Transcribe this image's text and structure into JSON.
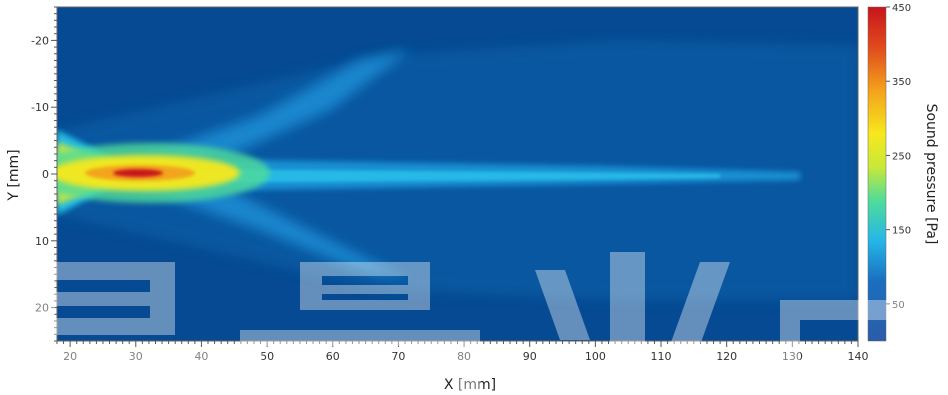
{
  "chart_data": {
    "type": "heatmap",
    "xlabel": "X [mm]",
    "ylabel": "Y [mm]",
    "colorbar_label": "Sound pressure [Pa]",
    "xlim": [
      18,
      140
    ],
    "ylim": [
      -25,
      25
    ],
    "y_inverted": true,
    "x_ticks": [
      20,
      30,
      40,
      50,
      60,
      70,
      80,
      90,
      100,
      110,
      120,
      130,
      140
    ],
    "y_ticks": [
      -20,
      -10,
      0,
      10,
      20
    ],
    "colorbar_range": [
      0,
      450
    ],
    "colorbar_ticks": [
      50,
      150,
      250,
      350,
      450
    ],
    "colormap": [
      "#2a5ca8",
      "#1a8fd6",
      "#25c7e8",
      "#4fdc9a",
      "#c8e83a",
      "#f7e81c",
      "#f3a21c",
      "#e04a1c",
      "#c8141c"
    ],
    "background_color": "#054a92",
    "beam_description": "Focused beam with peak near x=32 mm, y=0; a narrow axial streak extends downstream to x≈110 mm; two divergent lobes spread toward ±13 mm",
    "peak_value_estimate": 450,
    "peak_location": [
      32,
      0
    ],
    "watermark_glyphs": [
      "早",
      "晨",
      "光",
      "电"
    ]
  }
}
